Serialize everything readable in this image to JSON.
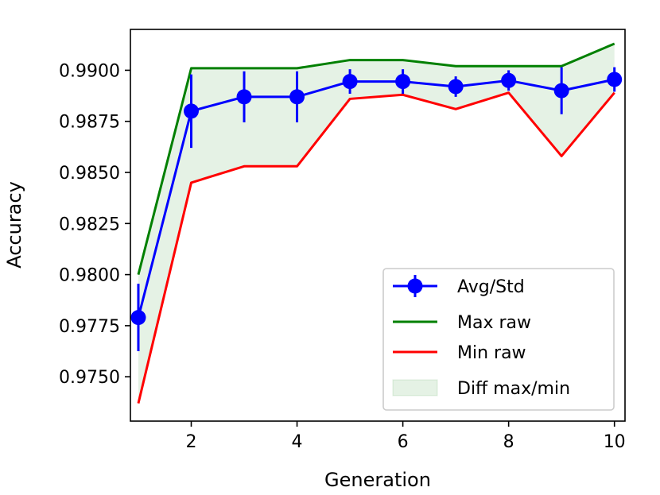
{
  "chart_data": {
    "type": "line",
    "title": "",
    "xlabel": "Generation",
    "ylabel": "Accuracy",
    "xlim": [
      0.85,
      10.2
    ],
    "ylim": [
      0.97283,
      0.992
    ],
    "xticks": [
      2,
      4,
      6,
      8,
      10
    ],
    "xtick_labels": [
      "2",
      "4",
      "6",
      "8",
      "10"
    ],
    "yticks": [
      0.975,
      0.9775,
      0.98,
      0.9825,
      0.985,
      0.9875,
      0.99
    ],
    "ytick_labels": [
      "0.9750",
      "0.9775",
      "0.9800",
      "0.9825",
      "0.9850",
      "0.9875",
      "0.9900"
    ],
    "grid": false,
    "legend_position": "lower-right",
    "x": [
      1,
      2,
      3,
      4,
      5,
      6,
      7,
      8,
      9,
      10
    ],
    "series": [
      {
        "name": "Avg/Std",
        "kind": "errorbar",
        "color": "#0000ff",
        "values": [
          0.9779,
          0.988,
          0.9887,
          0.9887,
          0.98945,
          0.98945,
          0.9892,
          0.9895,
          0.989,
          0.98955
        ],
        "errors": [
          0.00165,
          0.0018,
          0.00125,
          0.00125,
          0.0006,
          0.0006,
          0.0005,
          0.0005,
          0.00115,
          0.0006
        ]
      },
      {
        "name": "Max raw",
        "kind": "line",
        "color": "#008000",
        "values": [
          0.98,
          0.9901,
          0.9901,
          0.9901,
          0.9905,
          0.9905,
          0.9902,
          0.9902,
          0.9902,
          0.9913
        ]
      },
      {
        "name": "Min raw",
        "kind": "line",
        "color": "#ff0000",
        "values": [
          0.9737,
          0.9845,
          0.9853,
          0.9853,
          0.9886,
          0.9888,
          0.9881,
          0.9889,
          0.9858,
          0.9889
        ]
      },
      {
        "name": "Diff max/min",
        "kind": "fill_between",
        "color": "#008000",
        "alpha": 0.1,
        "upper": "Max raw",
        "lower": "Min raw"
      }
    ],
    "legend": [
      "Avg/Std",
      "Max raw",
      "Min raw",
      "Diff max/min"
    ]
  }
}
